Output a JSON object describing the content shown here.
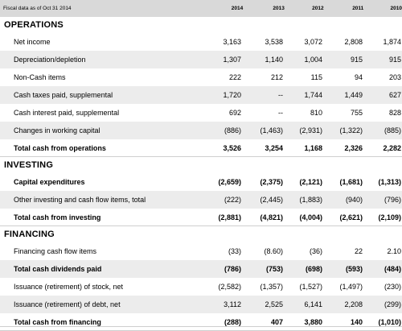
{
  "header": {
    "label": "Fiscal data as of Oct 31 2014",
    "years": [
      "2014",
      "2013",
      "2012",
      "2011",
      "2010"
    ]
  },
  "sections": [
    {
      "title": "OPERATIONS",
      "rows": [
        {
          "label": "Net income",
          "values": [
            "3,163",
            "3,538",
            "3,072",
            "2,808",
            "1,874"
          ],
          "bold": false
        },
        {
          "label": "Depreciation/depletion",
          "values": [
            "1,307",
            "1,140",
            "1,004",
            "915",
            "915"
          ],
          "bold": false
        },
        {
          "label": "Non-Cash items",
          "values": [
            "222",
            "212",
            "115",
            "94",
            "203"
          ],
          "bold": false
        },
        {
          "label": "Cash taxes paid, supplemental",
          "values": [
            "1,720",
            "--",
            "1,744",
            "1,449",
            "627"
          ],
          "bold": false
        },
        {
          "label": "Cash interest paid, supplemental",
          "values": [
            "692",
            "--",
            "810",
            "755",
            "828"
          ],
          "bold": false
        },
        {
          "label": "Changes in working capital",
          "values": [
            "(886)",
            "(1,463)",
            "(2,931)",
            "(1,322)",
            "(885)"
          ],
          "bold": false
        },
        {
          "label": "Total cash from operations",
          "values": [
            "3,526",
            "3,254",
            "1,168",
            "2,326",
            "2,282"
          ],
          "bold": true
        }
      ]
    },
    {
      "title": "INVESTING",
      "rows": [
        {
          "label": "Capital expenditures",
          "values": [
            "(2,659)",
            "(2,375)",
            "(2,121)",
            "(1,681)",
            "(1,313)"
          ],
          "bold": true
        },
        {
          "label": "Other investing and cash flow items, total",
          "values": [
            "(222)",
            "(2,445)",
            "(1,883)",
            "(940)",
            "(796)"
          ],
          "bold": false
        },
        {
          "label": "Total cash from investing",
          "values": [
            "(2,881)",
            "(4,821)",
            "(4,004)",
            "(2,621)",
            "(2,109)"
          ],
          "bold": true
        }
      ]
    },
    {
      "title": "FINANCING",
      "rows": [
        {
          "label": "Financing cash flow items",
          "values": [
            "(33)",
            "(8.60)",
            "(36)",
            "22",
            "2.10"
          ],
          "bold": false
        },
        {
          "label": "Total cash dividends paid",
          "values": [
            "(786)",
            "(753)",
            "(698)",
            "(593)",
            "(484)"
          ],
          "bold": true
        },
        {
          "label": "Issuance (retirement) of stock, net",
          "values": [
            "(2,582)",
            "(1,357)",
            "(1,527)",
            "(1,497)",
            "(230)"
          ],
          "bold": false
        },
        {
          "label": "Issuance (retirement) of debt, net",
          "values": [
            "3,112",
            "2,525",
            "6,141",
            "2,208",
            "(299)"
          ],
          "bold": false
        },
        {
          "label": "Total cash from financing",
          "values": [
            "(288)",
            "407",
            "3,880",
            "140",
            "(1,010)"
          ],
          "bold": true
        }
      ]
    }
  ]
}
